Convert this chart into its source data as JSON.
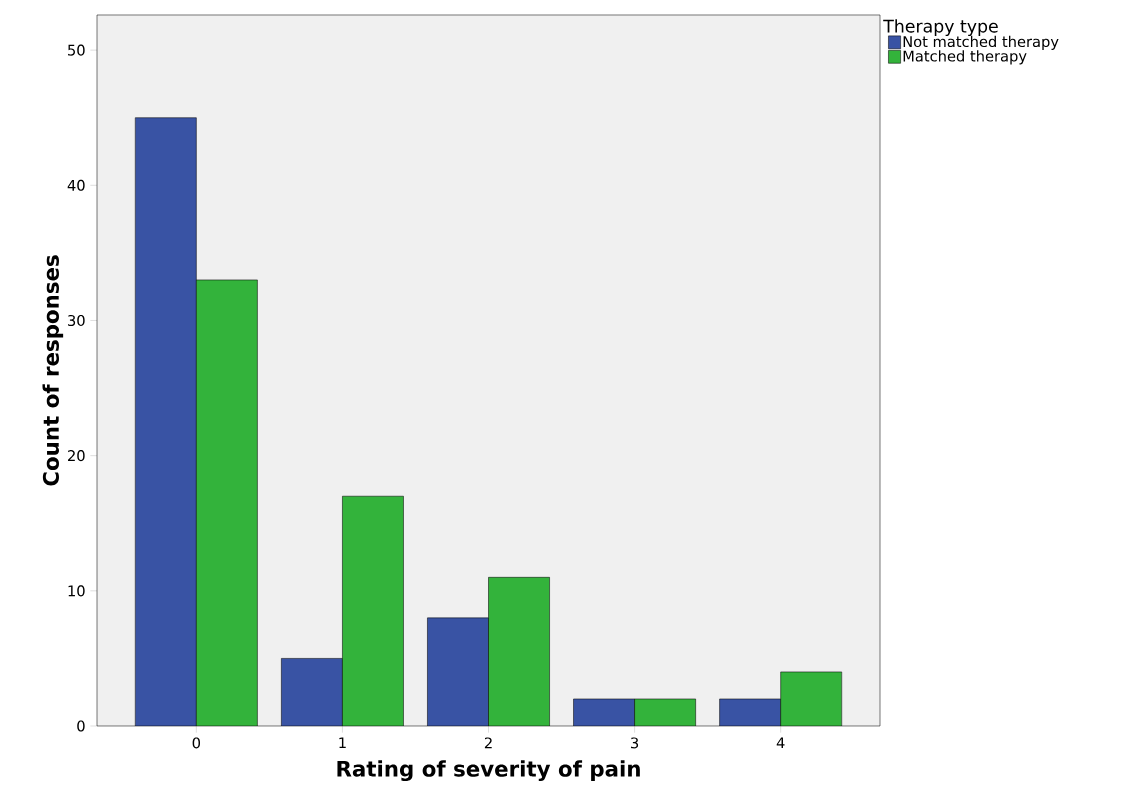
{
  "chart_data": {
    "type": "bar",
    "xlabel": "Rating of severity of pain",
    "ylabel": "Count of responses",
    "legend_title": "Therapy type",
    "categories": [
      "0",
      "1",
      "2",
      "3",
      "4"
    ],
    "series": [
      {
        "name": "Not matched therapy",
        "color": "#3953a4",
        "values": [
          45,
          5,
          8,
          2,
          2
        ]
      },
      {
        "name": "Matched therapy",
        "color": "#33b33b",
        "values": [
          33,
          17,
          11,
          2,
          4
        ]
      }
    ],
    "ylim": [
      0,
      52.6
    ],
    "yticks": [
      0,
      10,
      20,
      30,
      40,
      50
    ],
    "grid": false,
    "legend": "top right"
  }
}
